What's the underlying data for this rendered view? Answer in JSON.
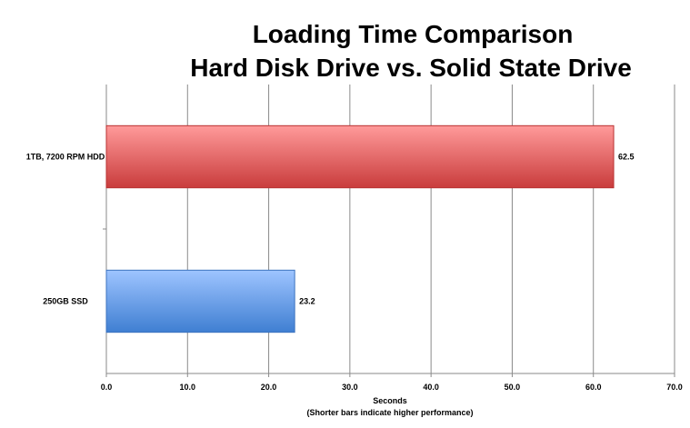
{
  "chart_data": {
    "type": "bar",
    "orientation": "horizontal",
    "title_lines": [
      "Loading Time Comparison",
      "Hard Disk Drive vs. Solid State Drive"
    ],
    "categories": [
      "1TB, 7200 RPM HDD",
      "250GB SSD"
    ],
    "values": [
      62.5,
      23.2
    ],
    "value_labels": [
      "62.5",
      "23.2"
    ],
    "xlabel": "Seconds",
    "xlabel_note": "(Shorter bars indicate higher performance)",
    "ylabel": "",
    "xlim": [
      0,
      70
    ],
    "xticks": [
      0,
      10,
      20,
      30,
      40,
      50,
      60,
      70
    ],
    "xtick_labels": [
      "0.0",
      "10.0",
      "20.0",
      "30.0",
      "40.0",
      "50.0",
      "60.0",
      "70.0"
    ],
    "grid": true,
    "legend": "none",
    "bar_colors": [
      {
        "top": "#ff9a9a",
        "bottom": "#c93c3c",
        "stroke": "#b83232"
      },
      {
        "top": "#9ec4ff",
        "bottom": "#3f7fd2",
        "stroke": "#3d73bf"
      }
    ]
  }
}
